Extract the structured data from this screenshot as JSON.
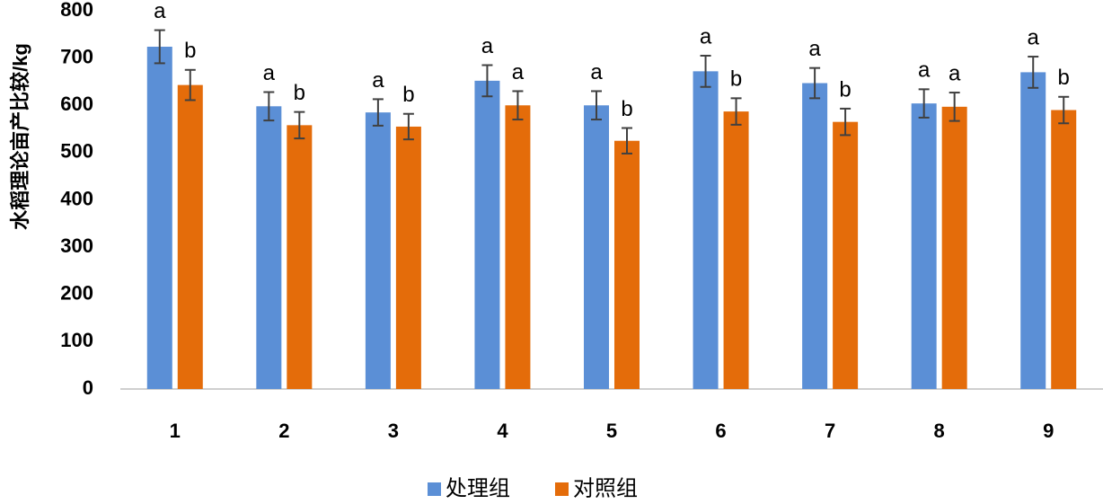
{
  "chart_data": {
    "type": "bar",
    "y_label": "水稻理论亩产比较/kg",
    "categories": [
      "1",
      "2",
      "3",
      "4",
      "5",
      "6",
      "7",
      "8",
      "9"
    ],
    "series": [
      {
        "name": "处理组",
        "color": "#5b8fd6",
        "values": [
          724,
          598,
          585,
          652,
          600,
          672,
          647,
          604,
          670
        ],
        "errors": [
          35,
          30,
          28,
          33,
          30,
          33,
          32,
          30,
          33
        ],
        "letters": [
          "a",
          "a",
          "a",
          "a",
          "a",
          "a",
          "a",
          "a",
          "a"
        ]
      },
      {
        "name": "对照组",
        "color": "#e46c0a",
        "values": [
          643,
          558,
          555,
          600,
          525,
          587,
          565,
          597,
          590
        ],
        "errors": [
          32,
          28,
          27,
          30,
          27,
          28,
          28,
          30,
          28
        ],
        "letters": [
          "b",
          "b",
          "b",
          "a",
          "b",
          "b",
          "b",
          "a",
          "b"
        ]
      }
    ],
    "ylim": [
      0,
      800
    ],
    "yticks": [
      0,
      100,
      200,
      300,
      400,
      500,
      600,
      700,
      800
    ],
    "grid": false,
    "legend": "bottom"
  }
}
